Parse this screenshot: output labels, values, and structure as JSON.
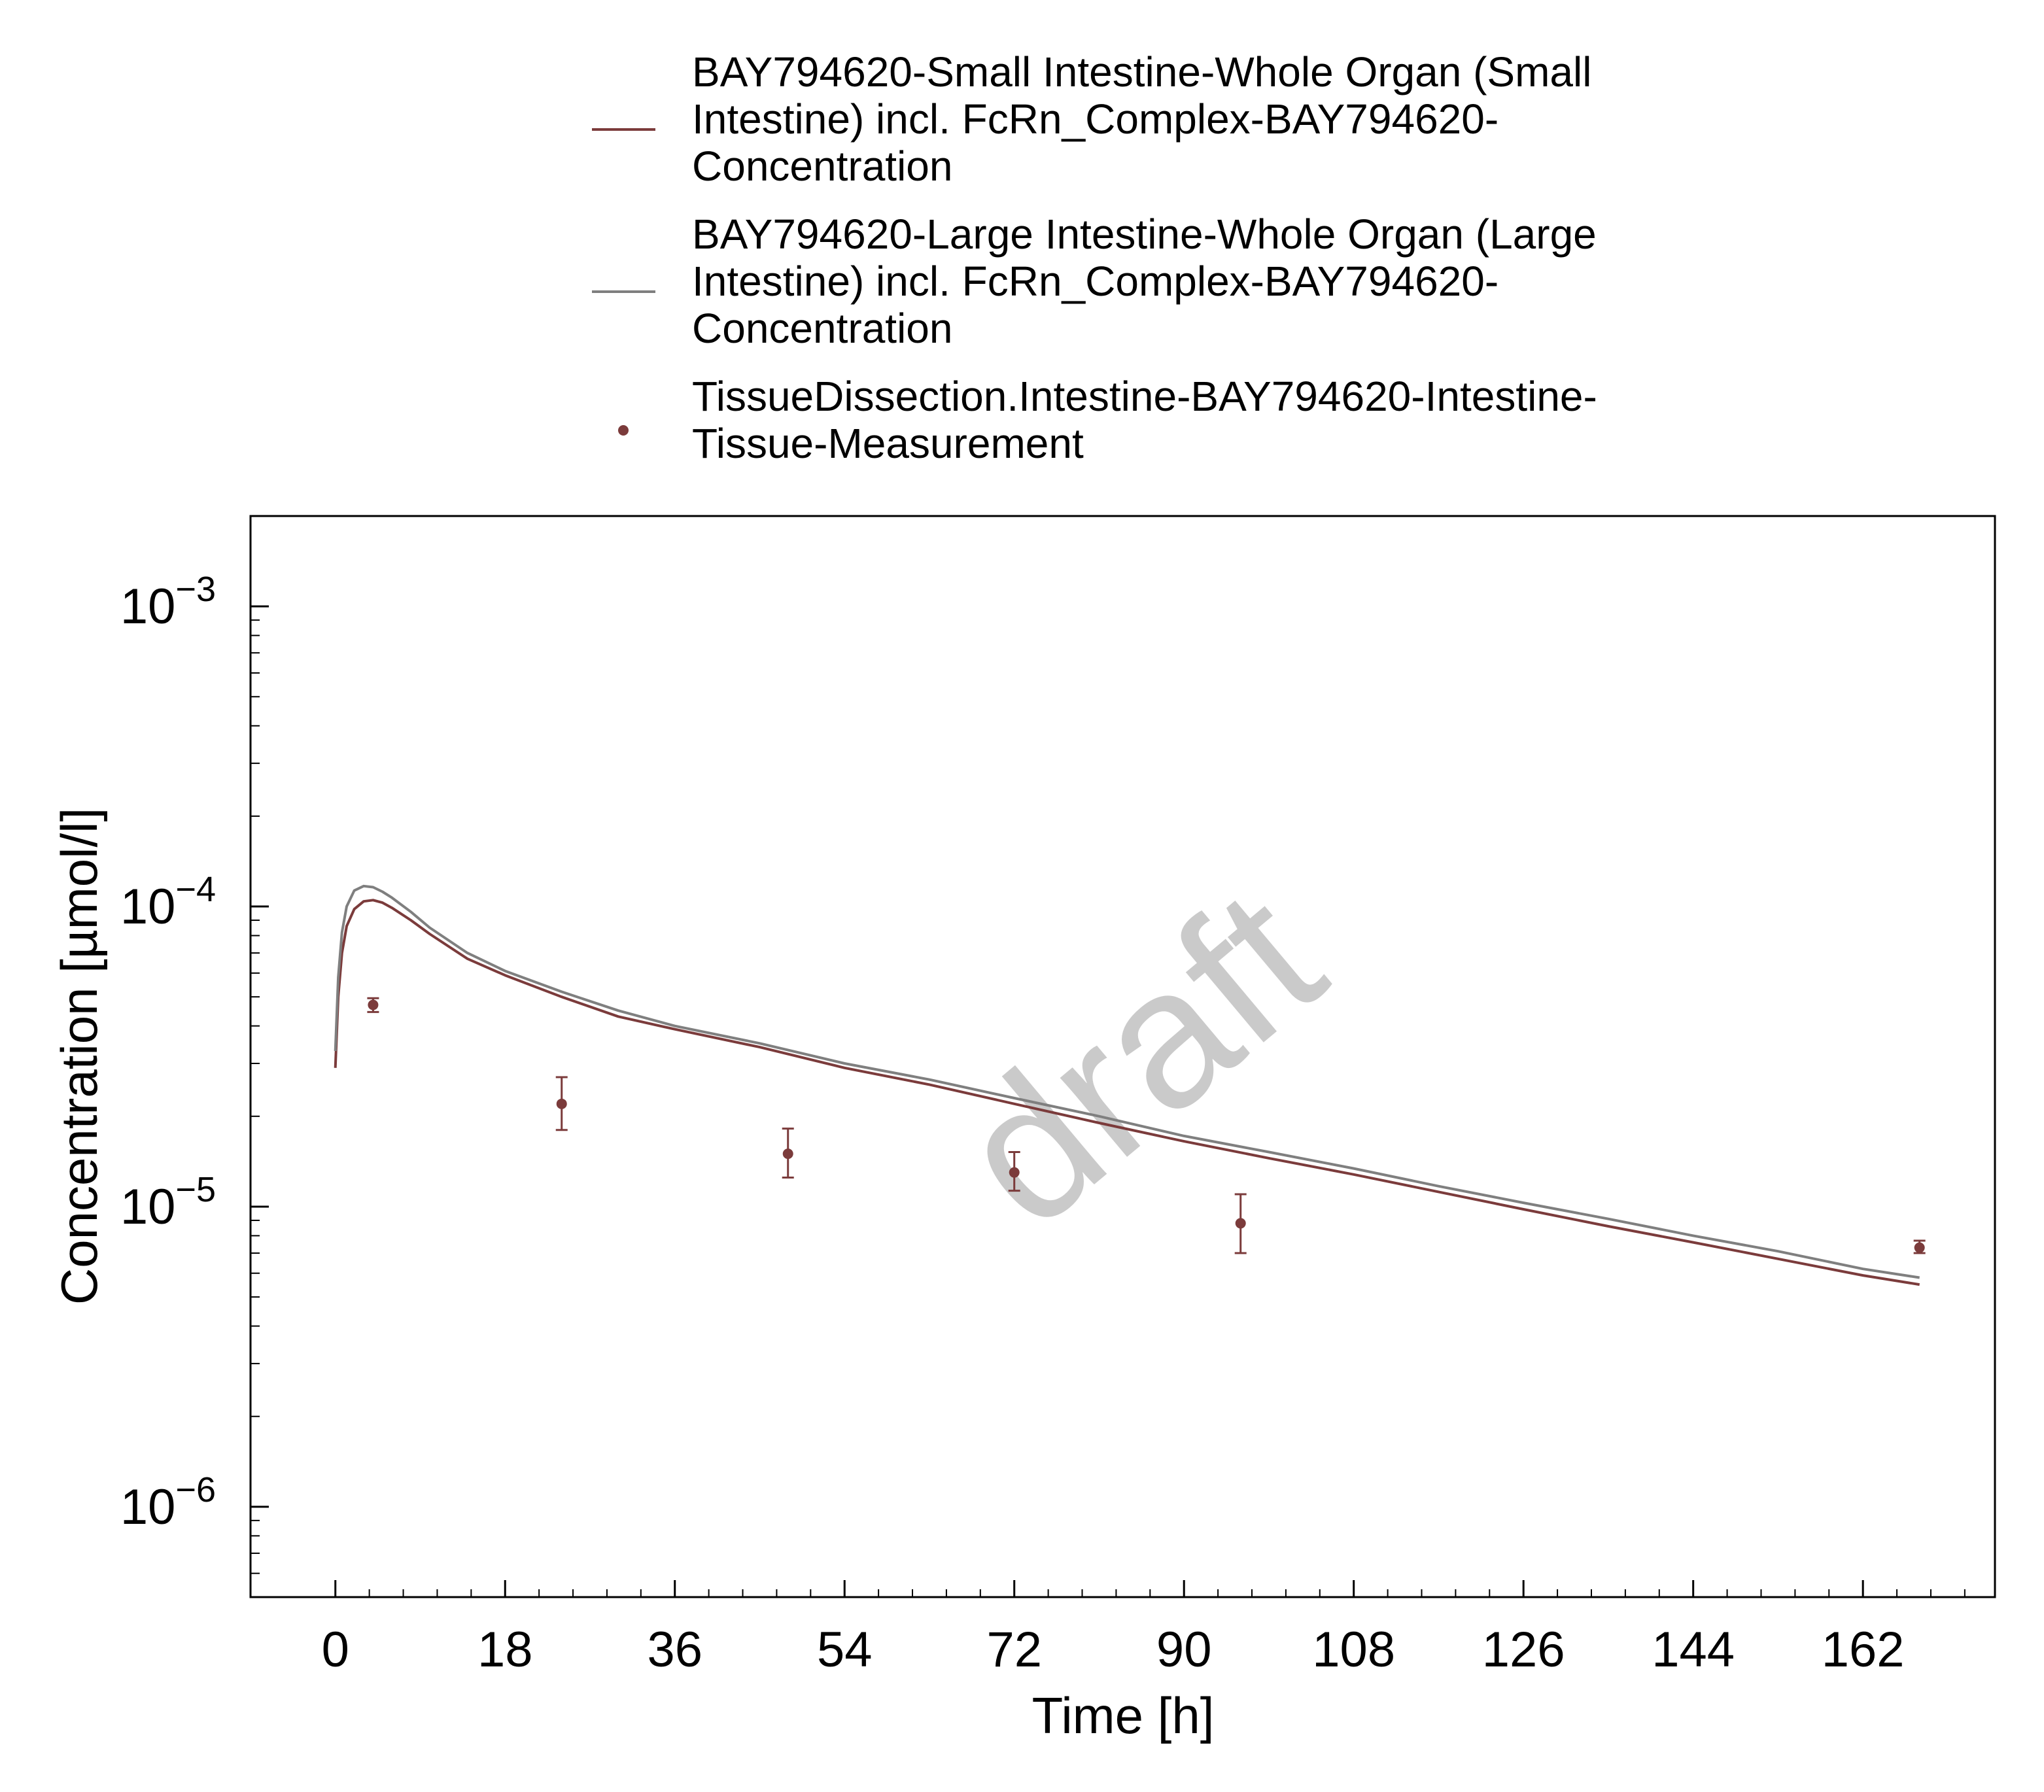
{
  "chart_data": {
    "type": "line",
    "title": "",
    "xlabel": "Time [h]",
    "ylabel": "Concentration [µmol/l]",
    "xlim": [
      -9,
      176
    ],
    "ylim": [
      5e-07,
      0.002
    ],
    "yscale": "log",
    "x_ticks": [
      0,
      18,
      36,
      54,
      72,
      90,
      108,
      126,
      144,
      162
    ],
    "x_tick_labels": [
      "0",
      "18",
      "36",
      "54",
      "72",
      "90",
      "108",
      "126",
      "144",
      "162"
    ],
    "y_ticks": [
      {
        "value": 0.001,
        "base": "10",
        "exp": "−3"
      },
      {
        "value": 0.0001,
        "base": "10",
        "exp": "−4"
      },
      {
        "value": 1e-05,
        "base": "10",
        "exp": "−5"
      },
      {
        "value": 1e-06,
        "base": "10",
        "exp": "−6"
      }
    ],
    "grid": false,
    "legend_position": "top",
    "watermark": "draft",
    "colors": {
      "small_intestine": "#7b3b3b",
      "large_intestine": "#7f7f7f",
      "measurement": "#7b3b3b"
    },
    "series": [
      {
        "name": "BAY794620-Small Intestine-Whole Organ (Small Intestine) incl. FcRn_Complex-BAY794620-Concentration",
        "name_lines": [
          "BAY794620-Small Intestine-Whole Organ (Small",
          "Intestine) incl. FcRn_Complex-BAY794620-",
          "Concentration"
        ],
        "kind": "line",
        "color": "#7b3b3b",
        "x": [
          0,
          0.3,
          0.7,
          1.2,
          2,
          3,
          4,
          5,
          6,
          8,
          10,
          14,
          18,
          24,
          30,
          36,
          45,
          54,
          63,
          72,
          81,
          90,
          99,
          108,
          117,
          126,
          135,
          144,
          153,
          162,
          168
        ],
        "y": [
          2.9e-05,
          5e-05,
          7e-05,
          8.6e-05,
          9.8e-05,
          0.000104,
          0.000105,
          0.000103,
          9.9e-05,
          9e-05,
          8.1e-05,
          6.7e-05,
          5.9e-05,
          5e-05,
          4.3e-05,
          3.9e-05,
          3.4e-05,
          2.9e-05,
          2.55e-05,
          2.2e-05,
          1.9e-05,
          1.65e-05,
          1.45e-05,
          1.28e-05,
          1.12e-05,
          9.8e-06,
          8.6e-06,
          7.6e-06,
          6.7e-06,
          5.9e-06,
          5.5e-06
        ]
      },
      {
        "name": "BAY794620-Large Intestine-Whole Organ (Large Intestine) incl. FcRn_Complex-BAY794620-Concentration",
        "name_lines": [
          "BAY794620-Large Intestine-Whole Organ (Large",
          "Intestine) incl. FcRn_Complex-BAY794620-",
          "Concentration"
        ],
        "kind": "line",
        "color": "#7f7f7f",
        "x": [
          0,
          0.3,
          0.7,
          1.2,
          2,
          3,
          4,
          5,
          6,
          8,
          10,
          14,
          18,
          24,
          30,
          36,
          45,
          54,
          63,
          72,
          81,
          90,
          99,
          108,
          117,
          126,
          135,
          144,
          153,
          162,
          168
        ],
        "y": [
          3.3e-05,
          5.8e-05,
          8.2e-05,
          0.0001,
          0.000113,
          0.000117,
          0.000116,
          0.000112,
          0.000107,
          9.6e-05,
          8.5e-05,
          7e-05,
          6.1e-05,
          5.2e-05,
          4.5e-05,
          4e-05,
          3.5e-05,
          3e-05,
          2.65e-05,
          2.3e-05,
          2e-05,
          1.72e-05,
          1.52e-05,
          1.34e-05,
          1.17e-05,
          1.03e-05,
          9.1e-06,
          8e-06,
          7.1e-06,
          6.2e-06,
          5.8e-06
        ]
      },
      {
        "name": "TissueDissection.Intestine-BAY794620-Intestine-Tissue-Measurement",
        "name_lines": [
          "TissueDissection.Intestine-BAY794620-Intestine-",
          "Tissue-Measurement"
        ],
        "kind": "scatter",
        "color": "#7b3b3b",
        "x": [
          4,
          24,
          48,
          72,
          96,
          168
        ],
        "y": [
          4.7e-05,
          2.2e-05,
          1.5e-05,
          1.3e-05,
          8.8e-06,
          7.3e-06
        ],
        "y_low": [
          4.45e-05,
          1.8e-05,
          1.25e-05,
          1.13e-05,
          7e-06,
          7e-06
        ],
        "y_high": [
          4.95e-05,
          2.7e-05,
          1.82e-05,
          1.52e-05,
          1.1e-05,
          7.7e-06
        ]
      }
    ]
  }
}
